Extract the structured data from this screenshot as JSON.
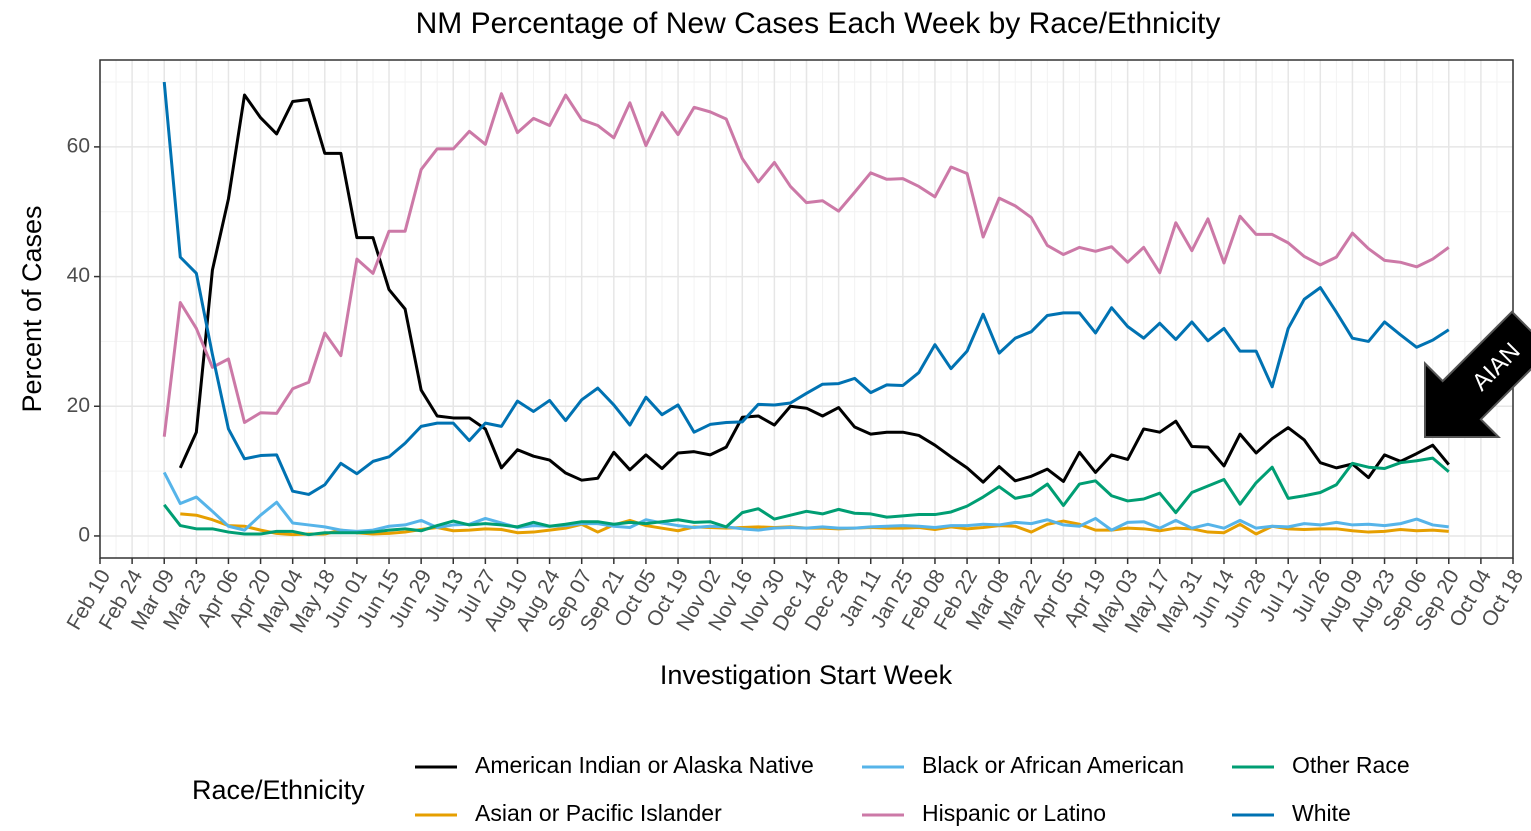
{
  "chart_data": {
    "type": "line",
    "title": "NM Percentage of New Cases Each Week by Race/Ethnicity",
    "x_label": "Investigation Start Week",
    "y_label": "Percent of Cases",
    "legend_title": "Race/Ethnicity",
    "annotation": "AIAN",
    "grid": true,
    "ylim": [
      -3.4,
      73.4
    ],
    "yticks": [
      0,
      20,
      40,
      60
    ],
    "categories": [
      "Feb 10",
      null,
      "Feb 24",
      null,
      "Mar 09",
      null,
      "Mar 23",
      null,
      "Apr 06",
      null,
      "Apr 20",
      null,
      "May 04",
      null,
      "May 18",
      null,
      "Jun 01",
      null,
      "Jun 15",
      null,
      "Jun 29",
      null,
      "Jul 13",
      null,
      "Jul 27",
      null,
      "Aug 10",
      null,
      "Aug 24",
      null,
      "Sep 07",
      null,
      "Sep 21",
      null,
      "Oct 05",
      null,
      "Oct 19",
      null,
      "Nov 02",
      null,
      "Nov 16",
      null,
      "Nov 30",
      null,
      "Dec 14",
      null,
      "Dec 28",
      null,
      "Jan 11",
      null,
      "Jan 25",
      null,
      "Feb 08",
      null,
      "Feb 22",
      null,
      "Mar 08",
      null,
      "Mar 22",
      null,
      "Apr 05",
      null,
      "Apr 19",
      null,
      "May 03",
      null,
      "May 17",
      null,
      "May 31",
      null,
      "Jun 14",
      null,
      "Jun 28",
      null,
      "Jul 12",
      null,
      "Jul 26",
      null,
      "Aug 09",
      null,
      "Aug 23",
      null,
      "Sep 06",
      null,
      "Sep 20",
      null,
      "Oct 04",
      null,
      "Oct 18"
    ],
    "series": [
      {
        "name": "American Indian or Alaska Native",
        "color": "#000000",
        "values": [
          null,
          null,
          null,
          null,
          null,
          10.5,
          16,
          41,
          52,
          68,
          64.5,
          62,
          67,
          67.3,
          59,
          59,
          46,
          46,
          38,
          35,
          22.5,
          18.5,
          18.2,
          18.2,
          16.5,
          10.5,
          13.3,
          12.3,
          11.7,
          9.7,
          8.6,
          8.9,
          12.9,
          10.2,
          12.5,
          10.4,
          12.8,
          13,
          12.5,
          13.7,
          18.3,
          18.5,
          17.1,
          20,
          19.7,
          18.5,
          19.8,
          16.8,
          15.7,
          16,
          16,
          15.5,
          14,
          12.2,
          10.5,
          8.3,
          10.7,
          8.5,
          9.2,
          10.3,
          8.4,
          12.9,
          9.8,
          12.5,
          11.8,
          16.5,
          16,
          17.7,
          13.8,
          13.7,
          10.8,
          15.7,
          12.8,
          15,
          16.7,
          14.8,
          11.3,
          10.5,
          11.1,
          9,
          12.5,
          11.5,
          12.7,
          14,
          11,
          null,
          null,
          null,
          null
        ]
      },
      {
        "name": "Asian or Pacific Islander",
        "color": "#E69F00",
        "values": [
          null,
          null,
          null,
          null,
          null,
          3.4,
          3.2,
          2.5,
          1.6,
          1.5,
          0.9,
          0.4,
          0.2,
          0.3,
          0.3,
          0.9,
          0.5,
          0.3,
          0.4,
          0.6,
          1,
          1.3,
          0.8,
          0.9,
          1.1,
          1,
          0.5,
          0.6,
          0.9,
          1.2,
          1.8,
          0.6,
          1.7,
          2.4,
          1.6,
          1.2,
          0.8,
          1.4,
          1.3,
          1.2,
          1.3,
          1.4,
          1.3,
          1.4,
          1.2,
          1.2,
          1.1,
          1.2,
          1.3,
          1.2,
          1.2,
          1.3,
          1,
          1.4,
          1.1,
          1.3,
          1.6,
          1.5,
          0.6,
          1.8,
          2.3,
          1.8,
          0.9,
          0.9,
          1.2,
          1.1,
          0.8,
          1.2,
          1.1,
          0.6,
          0.5,
          1.8,
          0.3,
          1.5,
          1.1,
          1,
          1.1,
          1.1,
          0.8,
          0.6,
          0.7,
          1,
          0.8,
          0.9,
          0.7,
          null,
          null,
          null,
          null
        ]
      },
      {
        "name": "Black or African American",
        "color": "#56B4E9",
        "values": [
          null,
          null,
          null,
          null,
          9.8,
          5,
          6,
          3.8,
          1.5,
          0.9,
          3.2,
          5.2,
          2,
          1.7,
          1.4,
          0.9,
          0.7,
          0.9,
          1.5,
          1.7,
          2.4,
          1.3,
          1.7,
          1.8,
          2.7,
          2,
          1.3,
          1.6,
          1.5,
          1.6,
          1.9,
          1.9,
          1.5,
          1.3,
          2.5,
          2,
          1.6,
          1.3,
          1.5,
          1.4,
          1.1,
          0.9,
          1.2,
          1.3,
          1.2,
          1.4,
          1.2,
          1.2,
          1.4,
          1.5,
          1.6,
          1.5,
          1.3,
          1.6,
          1.6,
          1.8,
          1.7,
          2.1,
          1.9,
          2.5,
          1.7,
          1.5,
          2.7,
          0.9,
          2.1,
          2.2,
          1.2,
          2.4,
          1.2,
          1.8,
          1.2,
          2.4,
          1.2,
          1.5,
          1.4,
          1.9,
          1.7,
          2.1,
          1.7,
          1.8,
          1.6,
          1.9,
          2.6,
          1.7,
          1.4,
          null,
          null,
          null,
          null
        ]
      },
      {
        "name": "Hispanic or Latino",
        "color": "#CC79A7",
        "values": [
          null,
          null,
          null,
          null,
          15.3,
          36,
          32,
          26,
          27.3,
          17.5,
          19,
          18.9,
          22.7,
          23.7,
          31.3,
          27.8,
          42.7,
          40.5,
          47,
          47,
          56.5,
          59.7,
          59.7,
          62.4,
          60.4,
          68.2,
          62.2,
          64.4,
          63.3,
          68,
          64.2,
          63.3,
          61.4,
          66.8,
          60.2,
          65.3,
          61.9,
          66.1,
          65.4,
          64.3,
          58.2,
          54.6,
          57.6,
          53.9,
          51.4,
          51.7,
          50.1,
          53,
          56,
          55,
          55.1,
          53.9,
          52.3,
          56.9,
          55.9,
          46.1,
          52.1,
          50.9,
          49.1,
          44.8,
          43.4,
          44.5,
          43.9,
          44.6,
          42.2,
          44.5,
          40.6,
          48.3,
          44,
          48.9,
          42.1,
          49.3,
          46.5,
          46.5,
          45.2,
          43.1,
          41.8,
          43,
          46.7,
          44.3,
          42.5,
          42.2,
          41.5,
          42.7,
          44.5,
          null,
          null,
          null,
          null
        ]
      },
      {
        "name": "Other Race",
        "color": "#009E73",
        "values": [
          null,
          null,
          null,
          null,
          4.8,
          1.6,
          1.1,
          1.1,
          0.6,
          0.3,
          0.3,
          0.7,
          0.7,
          0.2,
          0.5,
          0.5,
          0.5,
          0.6,
          0.9,
          1.1,
          0.8,
          1.6,
          2.3,
          1.7,
          1.9,
          1.7,
          1.4,
          2.1,
          1.5,
          1.8,
          2.2,
          2.2,
          1.8,
          2.1,
          1.9,
          2.2,
          2.5,
          2.1,
          2.2,
          1.4,
          3.6,
          4.2,
          2.6,
          3.2,
          3.8,
          3.4,
          4.1,
          3.5,
          3.4,
          2.9,
          3.1,
          3.3,
          3.3,
          3.7,
          4.6,
          6,
          7.6,
          5.8,
          6.3,
          8,
          4.7,
          8,
          8.5,
          6.2,
          5.4,
          5.7,
          6.6,
          3.6,
          6.7,
          7.7,
          8.7,
          4.9,
          8.2,
          10.6,
          5.8,
          6.2,
          6.7,
          7.9,
          11.2,
          10.6,
          10.4,
          11.3,
          11.6,
          12,
          9.9,
          null,
          null,
          null,
          null
        ]
      },
      {
        "name": "White",
        "color": "#0072B2",
        "values": [
          null,
          null,
          null,
          null,
          70,
          43,
          40.5,
          28,
          16.5,
          11.9,
          12.4,
          12.5,
          6.9,
          6.4,
          7.9,
          11.2,
          9.6,
          11.5,
          12.2,
          14.3,
          16.9,
          17.4,
          17.4,
          14.7,
          17.4,
          16.9,
          20.8,
          19.2,
          20.9,
          17.8,
          21,
          22.8,
          20.2,
          17.1,
          21.4,
          18.7,
          20.2,
          16,
          17.2,
          17.5,
          17.6,
          20.3,
          20.2,
          20.5,
          22,
          23.4,
          23.5,
          24.3,
          22.1,
          23.3,
          23.2,
          25.2,
          29.5,
          25.8,
          28.5,
          34.2,
          28.2,
          30.5,
          31.5,
          34,
          34.4,
          34.4,
          31.3,
          35.2,
          32.3,
          30.5,
          32.8,
          30.3,
          33,
          30.1,
          32,
          28.5,
          28.5,
          23,
          32,
          36.5,
          38.3,
          34.5,
          30.5,
          30,
          33,
          31,
          29.1,
          30.2,
          31.8,
          null,
          null,
          null,
          null
        ]
      }
    ]
  }
}
